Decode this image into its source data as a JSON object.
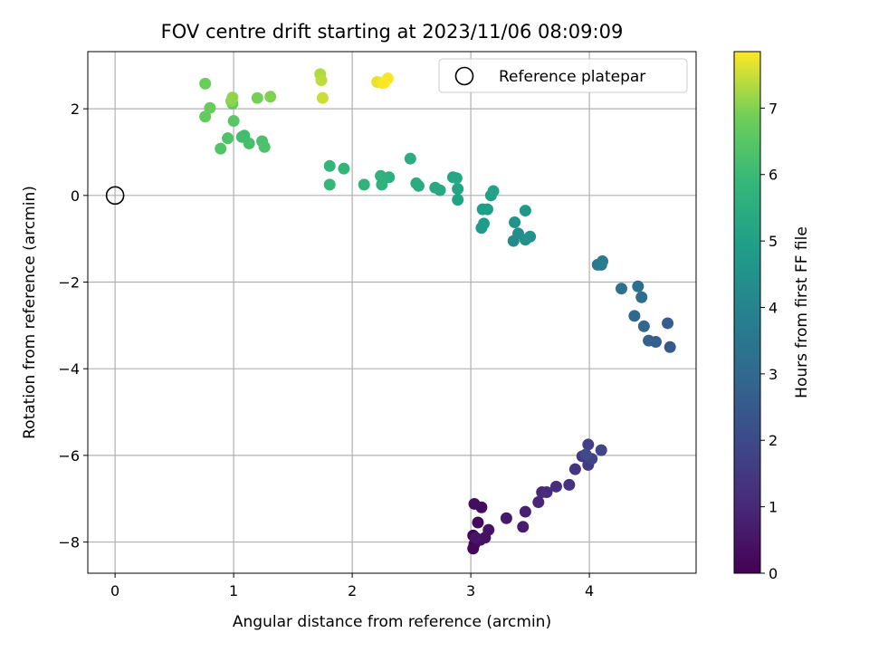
{
  "chart_data": {
    "type": "scatter",
    "title": "FOV centre drift starting at 2023/11/06 08:09:09",
    "xlabel": "Angular distance from reference (arcmin)",
    "ylabel": "Rotation from reference (arcmin)",
    "xlim": [
      -0.23,
      4.9
    ],
    "ylim": [
      -8.72,
      3.32
    ],
    "xticks": [
      0,
      1,
      2,
      3,
      4
    ],
    "yticks": [
      -8,
      -6,
      -4,
      -2,
      0,
      2
    ],
    "grid": true,
    "legend": {
      "placement": "top-right",
      "entries": [
        "Reference platepar"
      ]
    },
    "reference_point": {
      "x": 0,
      "y": 0,
      "label": "Reference platepar"
    },
    "colorbar": {
      "label": "Hours from first FF file",
      "colormap": "viridis",
      "range": [
        0,
        7.85
      ],
      "ticks": [
        0,
        1,
        2,
        3,
        4,
        5,
        6,
        7
      ]
    },
    "points": [
      [
        3.02,
        -7.85,
        0.05
      ],
      [
        3.03,
        -8.05,
        0.1
      ],
      [
        3.02,
        -8.15,
        0.15
      ],
      [
        3.06,
        -7.55,
        0.2
      ],
      [
        3.09,
        -7.2,
        0.25
      ],
      [
        3.03,
        -7.12,
        0.3
      ],
      [
        3.08,
        -7.95,
        0.35
      ],
      [
        3.12,
        -7.9,
        0.4
      ],
      [
        3.15,
        -7.72,
        0.45
      ],
      [
        3.04,
        -7.9,
        0.5
      ],
      [
        3.3,
        -7.45,
        0.6
      ],
      [
        3.44,
        -7.65,
        0.7
      ],
      [
        3.46,
        -7.3,
        0.8
      ],
      [
        3.57,
        -7.08,
        0.9
      ],
      [
        3.6,
        -6.85,
        1.0
      ],
      [
        3.64,
        -6.85,
        1.1
      ],
      [
        3.72,
        -6.72,
        1.2
      ],
      [
        3.83,
        -6.68,
        1.3
      ],
      [
        3.88,
        -6.32,
        1.4
      ],
      [
        3.94,
        -6.02,
        1.5
      ],
      [
        3.99,
        -6.22,
        1.6
      ],
      [
        3.99,
        -5.75,
        1.7
      ],
      [
        4.02,
        -6.08,
        1.8
      ],
      [
        4.1,
        -5.88,
        1.9
      ],
      [
        3.97,
        -5.98,
        2.0
      ],
      [
        4.68,
        -3.5,
        2.5
      ],
      [
        4.66,
        -2.95,
        2.6
      ],
      [
        4.56,
        -3.38,
        2.7
      ],
      [
        4.5,
        -3.35,
        2.8
      ],
      [
        4.46,
        -3.02,
        2.9
      ],
      [
        4.38,
        -2.78,
        3.0
      ],
      [
        4.44,
        -2.35,
        3.1
      ],
      [
        4.41,
        -2.1,
        3.2
      ],
      [
        4.27,
        -2.15,
        3.3
      ],
      [
        4.1,
        -1.6,
        3.5
      ],
      [
        4.07,
        -1.6,
        3.6
      ],
      [
        4.11,
        -1.52,
        3.7
      ],
      [
        3.36,
        -1.05,
        4.2
      ],
      [
        3.4,
        -0.88,
        4.3
      ],
      [
        3.46,
        -1.02,
        4.4
      ],
      [
        3.5,
        -0.95,
        4.5
      ],
      [
        3.37,
        -0.62,
        4.6
      ],
      [
        3.46,
        -0.35,
        4.7
      ],
      [
        3.09,
        -0.75,
        4.8
      ],
      [
        3.11,
        -0.65,
        4.85
      ],
      [
        3.1,
        -0.32,
        4.9
      ],
      [
        3.14,
        -0.32,
        4.95
      ],
      [
        3.17,
        0.0,
        5.0
      ],
      [
        3.19,
        0.1,
        5.05
      ],
      [
        2.89,
        -0.1,
        5.1
      ],
      [
        2.89,
        0.15,
        5.15
      ],
      [
        2.85,
        0.42,
        5.2
      ],
      [
        2.88,
        0.4,
        5.25
      ],
      [
        2.74,
        0.12,
        5.3
      ],
      [
        2.7,
        0.18,
        5.35
      ],
      [
        2.56,
        0.22,
        5.4
      ],
      [
        2.54,
        0.28,
        5.45
      ],
      [
        2.49,
        0.85,
        5.5
      ],
      [
        2.31,
        0.42,
        5.55
      ],
      [
        2.27,
        0.4,
        5.6
      ],
      [
        2.24,
        0.45,
        5.65
      ],
      [
        2.25,
        0.25,
        5.7
      ],
      [
        2.1,
        0.25,
        5.75
      ],
      [
        1.93,
        0.62,
        5.8
      ],
      [
        1.81,
        0.68,
        5.85
      ],
      [
        1.81,
        0.25,
        5.9
      ],
      [
        1.09,
        1.38,
        6.1
      ],
      [
        1.07,
        1.35,
        6.15
      ],
      [
        1.13,
        1.2,
        6.2
      ],
      [
        1.24,
        1.25,
        6.25
      ],
      [
        1.26,
        1.12,
        6.3
      ],
      [
        0.95,
        1.32,
        6.35
      ],
      [
        0.89,
        1.08,
        6.4
      ],
      [
        1.0,
        1.72,
        6.5
      ],
      [
        0.99,
        2.12,
        6.6
      ],
      [
        0.76,
        1.82,
        6.7
      ],
      [
        0.8,
        2.02,
        6.75
      ],
      [
        0.76,
        2.58,
        6.8
      ],
      [
        1.2,
        2.25,
        6.9
      ],
      [
        1.31,
        2.28,
        7.0
      ],
      [
        0.98,
        2.18,
        7.05
      ],
      [
        0.99,
        2.26,
        7.1
      ],
      [
        1.73,
        2.8,
        7.3
      ],
      [
        1.74,
        2.66,
        7.4
      ],
      [
        1.75,
        2.25,
        7.5
      ],
      [
        2.21,
        2.62,
        7.7
      ],
      [
        2.25,
        2.6,
        7.75
      ],
      [
        2.3,
        2.7,
        7.8
      ],
      [
        2.27,
        2.6,
        7.85
      ]
    ]
  }
}
